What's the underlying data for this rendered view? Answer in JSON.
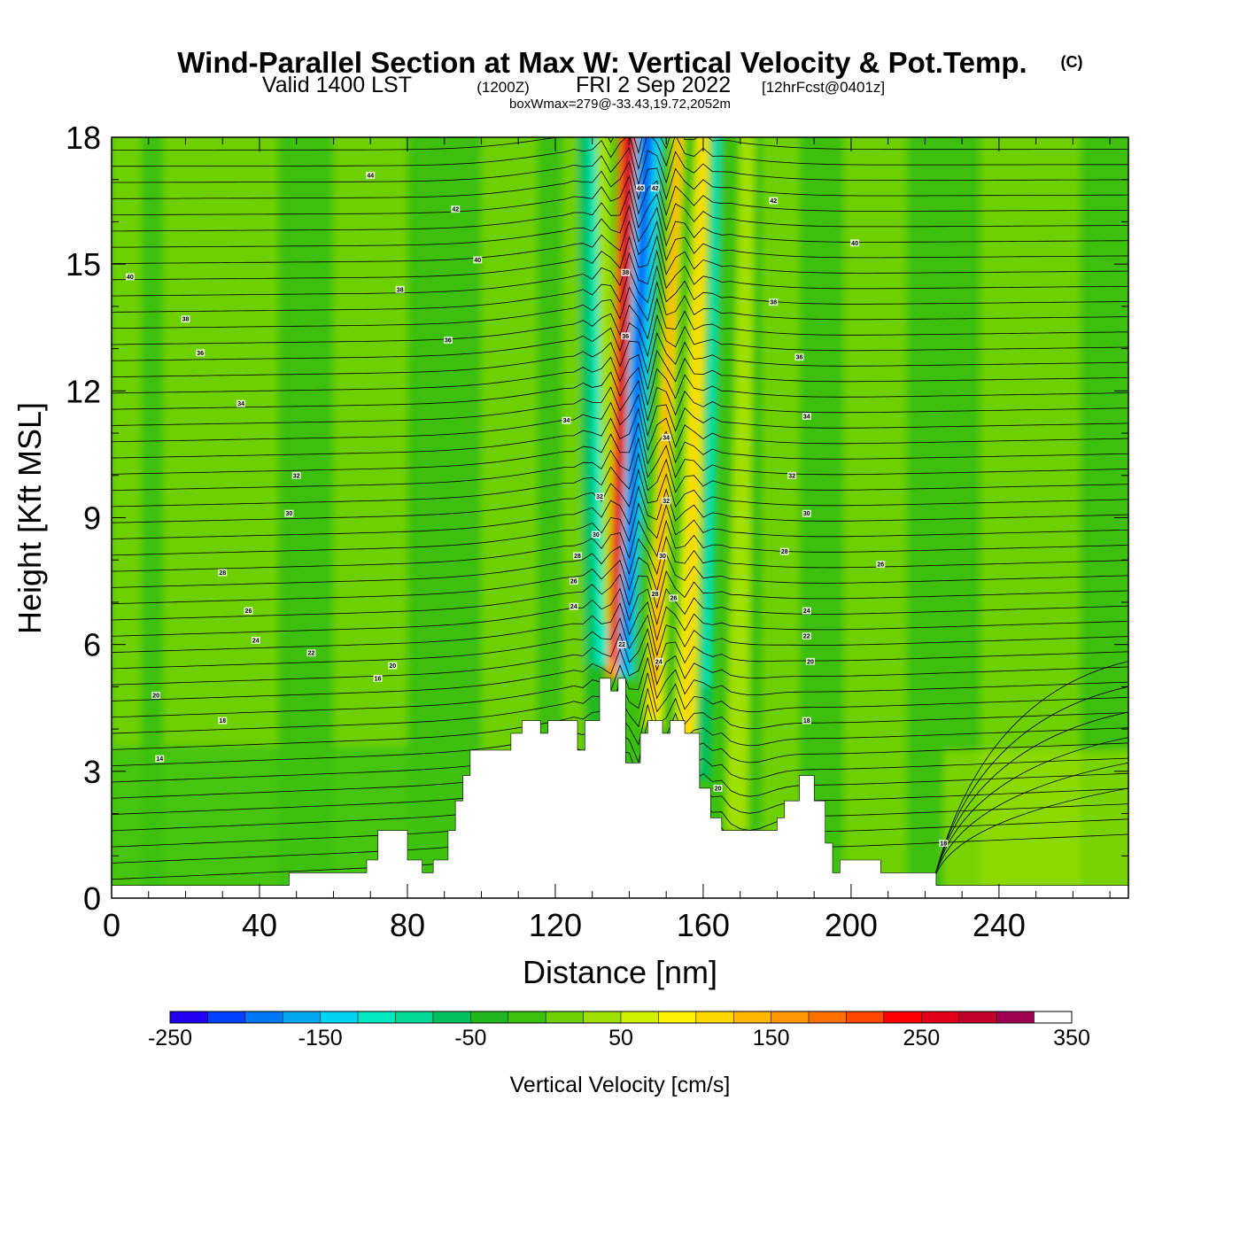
{
  "title": {
    "main": "Wind-Parallel Section at Max W: Vertical Velocity & Pot.Temp.",
    "copyright": "(C)",
    "valid_prefix": "Valid 1400 LST",
    "valid_utc": "(1200Z)",
    "valid_date": "FRI 2 Sep 2022",
    "forecast": "[12hrFcst@0401z]",
    "box_wmax": "boxWmax=279@-33.43,19.72,2052m"
  },
  "chart_data": {
    "type": "heatmap",
    "title": "Wind-Parallel Section at Max W: Vertical Velocity & Pot.Temp.",
    "xlabel": "Distance [nm]",
    "ylabel": "Height [Kft MSL]",
    "xlim": [
      0,
      275
    ],
    "ylim": [
      0,
      18
    ],
    "x_ticks": [
      0,
      40,
      80,
      120,
      160,
      200,
      240
    ],
    "y_ticks": [
      0,
      3,
      6,
      9,
      12,
      15,
      18
    ],
    "colorbar": {
      "label": "Vertical Velocity [cm/s]",
      "levels": [
        -250,
        -225,
        -200,
        -175,
        -150,
        -125,
        -100,
        -75,
        -50,
        -25,
        0,
        25,
        50,
        75,
        100,
        125,
        150,
        175,
        200,
        225,
        250,
        275,
        300,
        325,
        350
      ],
      "tick_labels": [
        "-250",
        "-150",
        "-50",
        "50",
        "150",
        "250",
        "350"
      ],
      "colors": [
        "#1f00f0",
        "#0040ff",
        "#0078f5",
        "#00a8f0",
        "#00d4f0",
        "#00e8c0",
        "#00d898",
        "#00c060",
        "#20b820",
        "#3cc010",
        "#6ed000",
        "#a0e000",
        "#d0f000",
        "#fff200",
        "#ffd800",
        "#ffb800",
        "#ff9800",
        "#ff7000",
        "#ff4800",
        "#ff0000",
        "#e00018",
        "#c0002a",
        "#a00050"
      ]
    },
    "updraft_bands": [
      {
        "x_center_low": 136,
        "x_center_top": 140,
        "w_cm_s": 279,
        "kind": "updraft"
      },
      {
        "x_center_low": 139,
        "x_center_top": 145,
        "w_cm_s": -200,
        "kind": "downdraft"
      },
      {
        "x_center_low": 149,
        "x_center_top": 152,
        "w_cm_s": 120,
        "kind": "updraft"
      },
      {
        "x_center_low": 157,
        "x_center_top": 161,
        "w_cm_s": 90,
        "kind": "updraft"
      }
    ],
    "terrain_kft": [
      [
        0,
        0.3
      ],
      [
        48,
        0.3
      ],
      [
        48,
        0.6
      ],
      [
        69,
        0.6
      ],
      [
        69,
        0.9
      ],
      [
        72,
        0.9
      ],
      [
        72,
        1.6
      ],
      [
        80,
        1.6
      ],
      [
        80,
        0.9
      ],
      [
        84,
        0.9
      ],
      [
        84,
        0.6
      ],
      [
        87,
        0.6
      ],
      [
        87,
        0.9
      ],
      [
        91,
        0.9
      ],
      [
        91,
        1.6
      ],
      [
        93,
        1.6
      ],
      [
        93,
        2.3
      ],
      [
        95,
        2.3
      ],
      [
        95,
        2.9
      ],
      [
        97,
        2.9
      ],
      [
        97,
        3.5
      ],
      [
        108,
        3.5
      ],
      [
        108,
        3.9
      ],
      [
        111,
        3.9
      ],
      [
        111,
        4.2
      ],
      [
        116,
        4.2
      ],
      [
        116,
        3.9
      ],
      [
        118,
        3.9
      ],
      [
        118,
        4.2
      ],
      [
        126,
        4.2
      ],
      [
        126,
        3.5
      ],
      [
        128,
        3.5
      ],
      [
        128,
        4.2
      ],
      [
        132,
        4.2
      ],
      [
        132,
        5.2
      ],
      [
        135,
        5.2
      ],
      [
        135,
        4.9
      ],
      [
        137,
        4.9
      ],
      [
        137,
        5.2
      ],
      [
        139,
        5.2
      ],
      [
        139,
        3.2
      ],
      [
        143,
        3.2
      ],
      [
        143,
        3.9
      ],
      [
        145,
        3.9
      ],
      [
        145,
        4.2
      ],
      [
        149,
        4.2
      ],
      [
        149,
        3.9
      ],
      [
        151,
        3.9
      ],
      [
        151,
        4.2
      ],
      [
        155,
        4.2
      ],
      [
        155,
        3.9
      ],
      [
        159,
        3.9
      ],
      [
        159,
        2.6
      ],
      [
        162,
        2.6
      ],
      [
        162,
        1.9
      ],
      [
        165,
        1.9
      ],
      [
        165,
        1.6
      ],
      [
        180,
        1.6
      ],
      [
        180,
        1.9
      ],
      [
        182,
        1.9
      ],
      [
        182,
        2.3
      ],
      [
        186,
        2.3
      ],
      [
        186,
        2.9
      ],
      [
        190,
        2.9
      ],
      [
        190,
        2.3
      ],
      [
        193,
        2.3
      ],
      [
        193,
        1.3
      ],
      [
        195,
        1.3
      ],
      [
        195,
        0.6
      ],
      [
        197,
        0.6
      ],
      [
        197,
        0.9
      ],
      [
        208,
        0.9
      ],
      [
        208,
        0.6
      ],
      [
        223,
        0.6
      ],
      [
        223,
        0.3
      ],
      [
        275,
        0.3
      ]
    ],
    "theta_labels": [
      {
        "x": 5,
        "y": 14.7,
        "text": "40"
      },
      {
        "x": 20,
        "y": 13.7,
        "text": "38"
      },
      {
        "x": 24,
        "y": 12.9,
        "text": "36"
      },
      {
        "x": 35,
        "y": 11.7,
        "text": "34"
      },
      {
        "x": 50,
        "y": 10.0,
        "text": "32"
      },
      {
        "x": 48,
        "y": 9.1,
        "text": "30"
      },
      {
        "x": 30,
        "y": 7.7,
        "text": "28"
      },
      {
        "x": 37,
        "y": 6.8,
        "text": "26"
      },
      {
        "x": 39,
        "y": 6.1,
        "text": "24"
      },
      {
        "x": 54,
        "y": 5.8,
        "text": "22"
      },
      {
        "x": 76,
        "y": 5.5,
        "text": "20"
      },
      {
        "x": 72,
        "y": 5.2,
        "text": "16"
      },
      {
        "x": 12,
        "y": 4.8,
        "text": "20"
      },
      {
        "x": 30,
        "y": 4.2,
        "text": "18"
      },
      {
        "x": 13,
        "y": 3.3,
        "text": "14"
      },
      {
        "x": 70,
        "y": 17.1,
        "text": "44"
      },
      {
        "x": 93,
        "y": 16.3,
        "text": "42"
      },
      {
        "x": 99,
        "y": 15.1,
        "text": "40"
      },
      {
        "x": 78,
        "y": 14.4,
        "text": "38"
      },
      {
        "x": 91,
        "y": 13.2,
        "text": "36"
      },
      {
        "x": 123,
        "y": 11.3,
        "text": "34"
      },
      {
        "x": 132,
        "y": 9.5,
        "text": "32"
      },
      {
        "x": 131,
        "y": 8.6,
        "text": "30"
      },
      {
        "x": 126,
        "y": 8.1,
        "text": "28"
      },
      {
        "x": 125,
        "y": 7.5,
        "text": "26"
      },
      {
        "x": 125,
        "y": 6.9,
        "text": "24"
      },
      {
        "x": 138,
        "y": 6.0,
        "text": "22"
      },
      {
        "x": 139,
        "y": 14.8,
        "text": "38"
      },
      {
        "x": 139,
        "y": 13.3,
        "text": "36"
      },
      {
        "x": 143,
        "y": 16.8,
        "text": "40"
      },
      {
        "x": 147,
        "y": 16.8,
        "text": "42"
      },
      {
        "x": 150,
        "y": 10.9,
        "text": "34"
      },
      {
        "x": 150,
        "y": 9.4,
        "text": "32"
      },
      {
        "x": 149,
        "y": 8.1,
        "text": "30"
      },
      {
        "x": 147,
        "y": 7.2,
        "text": "28"
      },
      {
        "x": 152,
        "y": 7.1,
        "text": "26"
      },
      {
        "x": 148,
        "y": 5.6,
        "text": "24"
      },
      {
        "x": 164,
        "y": 2.6,
        "text": "20"
      },
      {
        "x": 179,
        "y": 16.5,
        "text": "42"
      },
      {
        "x": 201,
        "y": 15.5,
        "text": "40"
      },
      {
        "x": 179,
        "y": 14.1,
        "text": "38"
      },
      {
        "x": 186,
        "y": 12.8,
        "text": "36"
      },
      {
        "x": 188,
        "y": 11.4,
        "text": "34"
      },
      {
        "x": 184,
        "y": 10.0,
        "text": "32"
      },
      {
        "x": 188,
        "y": 9.1,
        "text": "30"
      },
      {
        "x": 182,
        "y": 8.2,
        "text": "28"
      },
      {
        "x": 208,
        "y": 7.9,
        "text": "26"
      },
      {
        "x": 188,
        "y": 6.8,
        "text": "24"
      },
      {
        "x": 188,
        "y": 6.2,
        "text": "22"
      },
      {
        "x": 189,
        "y": 5.6,
        "text": "20"
      },
      {
        "x": 188,
        "y": 4.2,
        "text": "18"
      },
      {
        "x": 225,
        "y": 1.3,
        "text": "18"
      }
    ]
  }
}
